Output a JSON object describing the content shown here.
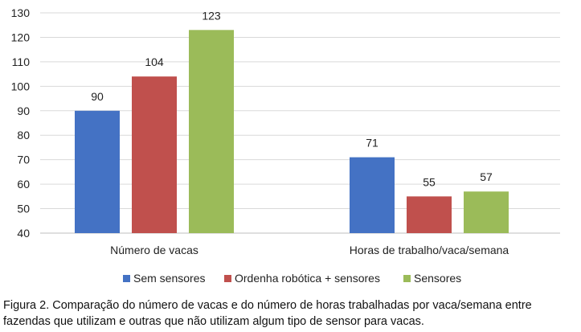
{
  "chart_data": {
    "type": "bar",
    "categories": [
      "Número de vacas",
      "Horas de trabalho/vaca/semana"
    ],
    "series": [
      {
        "name": "Sem sensores",
        "values": [
          90,
          71
        ],
        "color": "#4472c4"
      },
      {
        "name": "Ordenha robótica + sensores",
        "values": [
          104,
          55
        ],
        "color": "#c0504d"
      },
      {
        "name": "Sensores",
        "values": [
          123,
          57
        ],
        "color": "#9bbb59"
      }
    ],
    "ylim": [
      40,
      130
    ],
    "yticks": [
      40,
      50,
      60,
      70,
      80,
      90,
      100,
      110,
      120,
      130
    ],
    "grid": true,
    "legend_position": "bottom",
    "data_labels": true
  },
  "caption": "Figura 2. Comparação do número de vacas e do número de horas trabalhadas por vaca/semana entre fazendas que utilizam e outras que não utilizam algum tipo de sensor para vacas."
}
